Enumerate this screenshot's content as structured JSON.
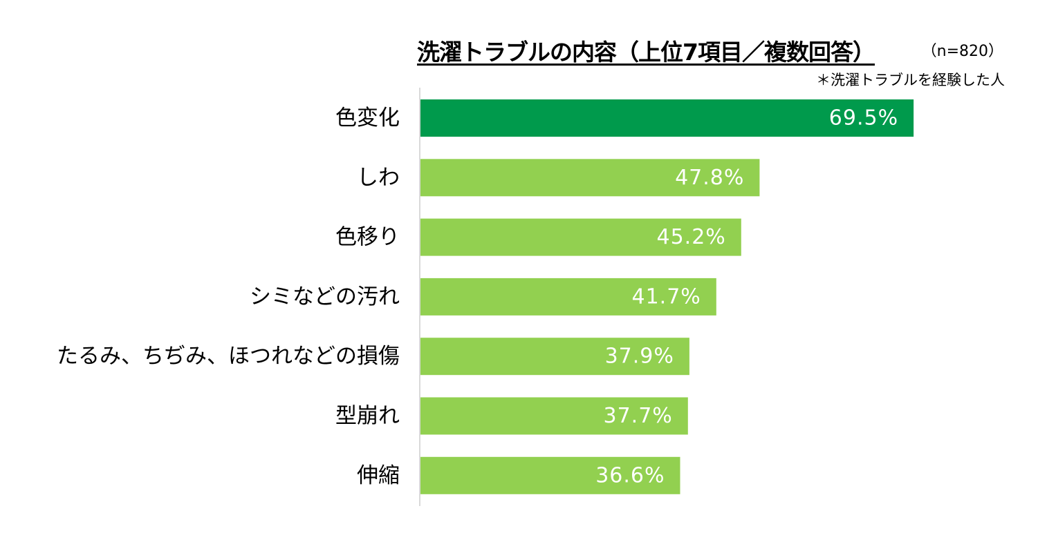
{
  "chart_data": {
    "type": "bar",
    "orientation": "horizontal",
    "title": "洗濯トラブルの内容（上位7項目／複数回答）",
    "sample_size": "（n=820）",
    "note": "＊洗濯トラブルを経験した人",
    "categories": [
      "色変化",
      "しわ",
      "色移り",
      "シミなどの汚れ",
      "たるみ、ちぢみ、ほつれなどの損傷",
      "型崩れ",
      "伸縮"
    ],
    "values": [
      69.5,
      47.8,
      45.2,
      41.7,
      37.9,
      37.7,
      36.6
    ],
    "value_labels": [
      "69.5%",
      "47.8%",
      "45.2%",
      "41.7%",
      "37.9%",
      "37.7%",
      "36.6%"
    ],
    "xlim": [
      0,
      100
    ],
    "unit": "%",
    "grid": false,
    "colors": {
      "highlight": "#009a4c",
      "bar": "#92d050",
      "axis": "#d9d9d9",
      "value_label": "#ffffff"
    }
  }
}
